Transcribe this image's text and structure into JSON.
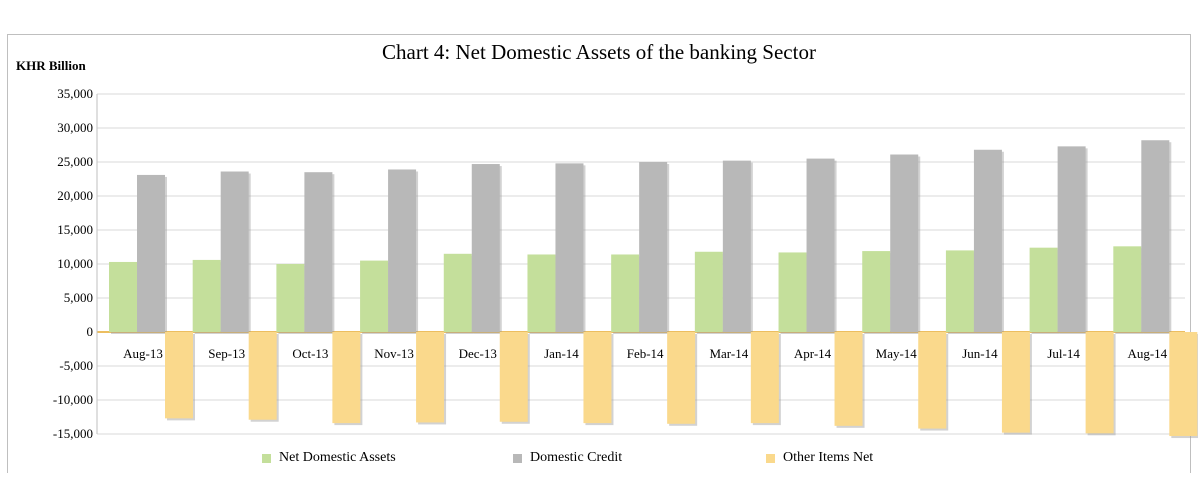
{
  "chart_data": {
    "type": "bar",
    "title": "Chart 4: Net Domestic Assets of the banking Sector",
    "ylabel": "KHR Billion",
    "xlabel": "",
    "ylim": [
      -15000,
      35000
    ],
    "yticks": [
      35000,
      30000,
      25000,
      20000,
      15000,
      10000,
      5000,
      0,
      -5000,
      -10000,
      -15000
    ],
    "ytick_labels": [
      "35,000",
      "30,000",
      "25,000",
      "20,000",
      "15,000",
      "10,000",
      "5,000",
      "0",
      "-5,000",
      "-10,000",
      "-15,000"
    ],
    "grid": true,
    "legend_position": "bottom",
    "categories": [
      "Aug-13",
      "Sep-13",
      "Oct-13",
      "Nov-13",
      "Dec-13",
      "Jan-14",
      "Feb-14",
      "Mar-14",
      "Apr-14",
      "May-14",
      "Jun-14",
      "Jul-14",
      "Aug-14"
    ],
    "series": [
      {
        "name": "Net Domestic Assets",
        "color": "#c4df9b",
        "values": [
          10300,
          10600,
          10000,
          10500,
          11500,
          11400,
          11400,
          11800,
          11700,
          11900,
          12000,
          12400,
          12600
        ]
      },
      {
        "name": "Domestic Credit",
        "color": "#b8b8b8",
        "values": [
          23100,
          23600,
          23500,
          23900,
          24700,
          24800,
          25000,
          25200,
          25500,
          26100,
          26800,
          27300,
          28200
        ]
      },
      {
        "name": "Other Items Net",
        "color": "#fad98c",
        "values": [
          -12700,
          -12900,
          -13400,
          -13300,
          -13200,
          -13400,
          -13500,
          -13400,
          -13800,
          -14200,
          -14800,
          -14900,
          -15300
        ]
      }
    ]
  }
}
